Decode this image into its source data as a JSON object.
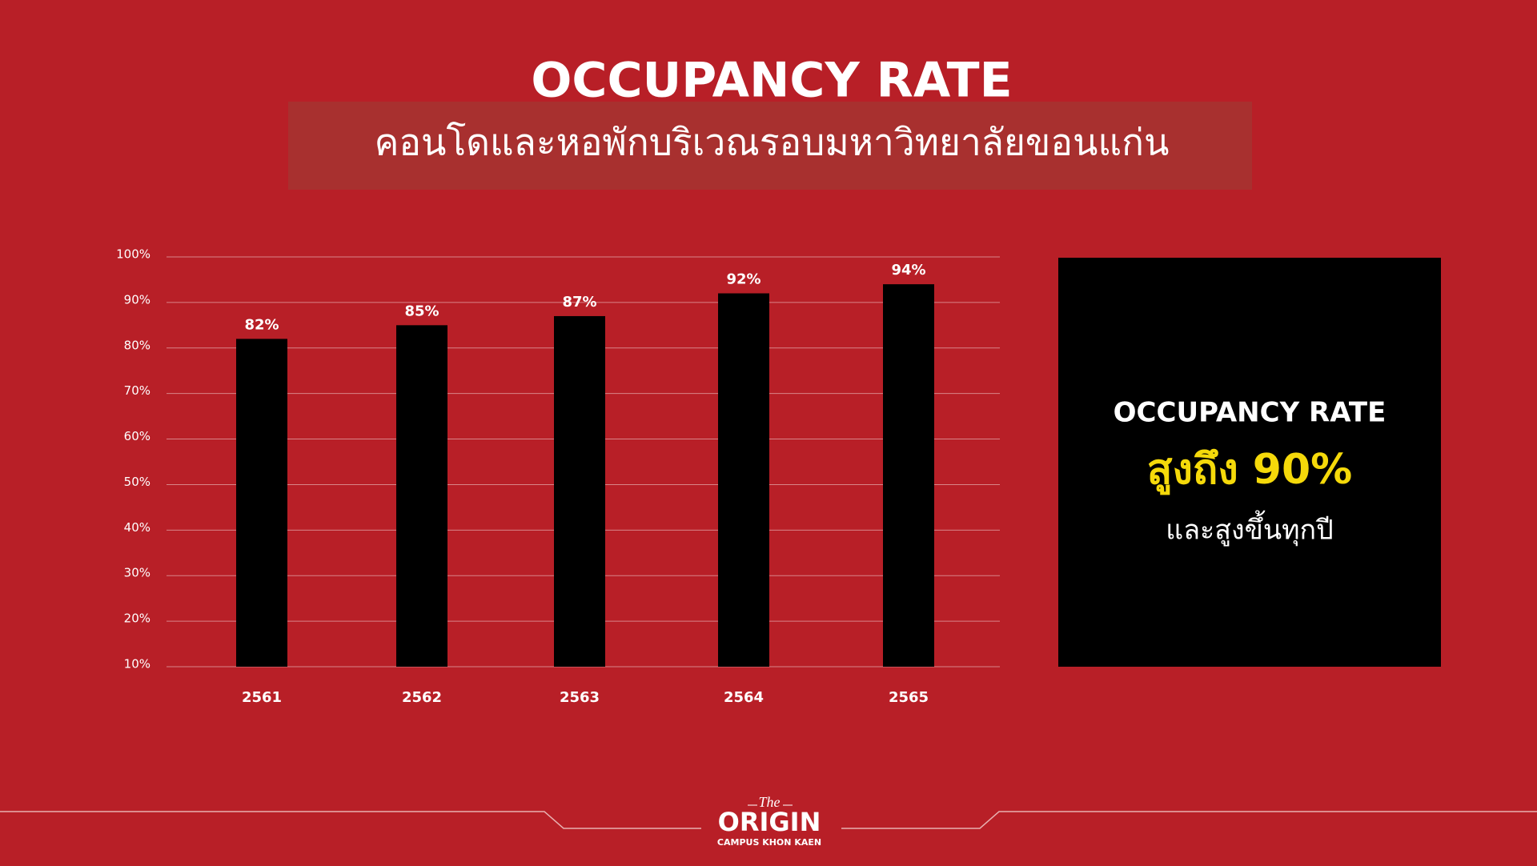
{
  "chart_data": {
    "type": "bar",
    "title": "OCCUPANCY RATE",
    "subtitle": "คอนโดและหอพักบริเวณรอบมหาวิทยาลัยขอนแก่น",
    "categories": [
      "2561",
      "2562",
      "2563",
      "2564",
      "2565"
    ],
    "values": [
      82,
      85,
      87,
      92,
      94
    ],
    "value_labels": [
      "82%",
      "85%",
      "87%",
      "92%",
      "94%"
    ],
    "color": "#000000",
    "ylim": [
      10,
      100
    ],
    "yticks": [
      {
        "value": 10,
        "label": "10%"
      },
      {
        "value": 20,
        "label": "20%"
      },
      {
        "value": 30,
        "label": "30%"
      },
      {
        "value": 40,
        "label": "40%"
      },
      {
        "value": 50,
        "label": "50%"
      },
      {
        "value": 60,
        "label": "60%"
      },
      {
        "value": 70,
        "label": "70%"
      },
      {
        "value": 80,
        "label": "80%"
      },
      {
        "value": 90,
        "label": "90%"
      },
      {
        "value": 100,
        "label": "100%"
      }
    ],
    "grid": true
  },
  "callout": {
    "heading": "OCCUPANCY RATE",
    "highlight": "สูงถึง 90%",
    "note": "และสูงขึ้นทุกปี"
  },
  "logo": {
    "the": "The",
    "name": "ORIGIN",
    "tagline": "CAMPUS KHON KAEN"
  }
}
